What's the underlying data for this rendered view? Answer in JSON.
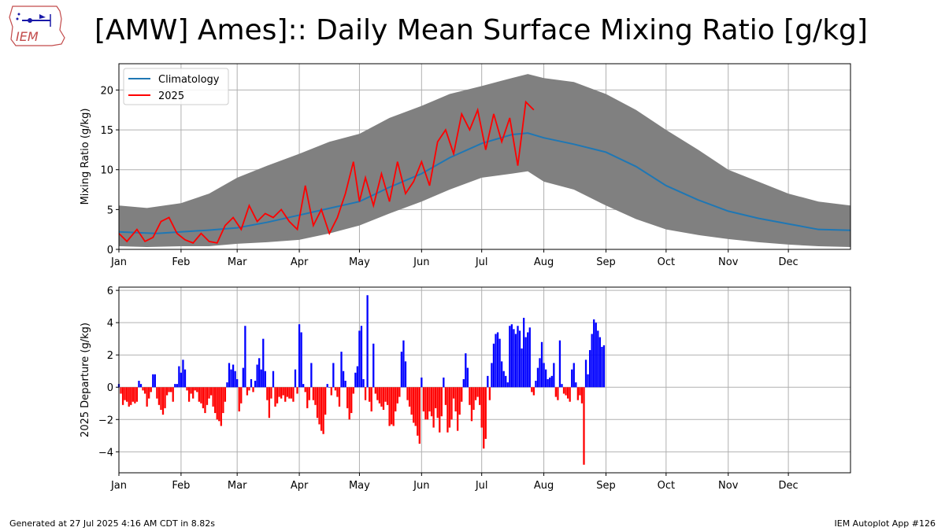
{
  "title": "[AMW] Ames]:: Daily Mean Surface Mixing Ratio [g/kg]",
  "logo_text": "IEM",
  "footer": {
    "generated": "Generated at 27 Jul 2025 4:16 AM CDT in 8.82s",
    "app": "IEM Autoplot App #126"
  },
  "colors": {
    "climatology": "#1f77b4",
    "current": "#ff0000",
    "range": "#808080",
    "positive": "#0000ff",
    "negative": "#ff0000",
    "grid": "#b0b0b0"
  },
  "chart_data": [
    {
      "type": "line",
      "title": "",
      "xlabel": "",
      "ylabel": "Mixing Ratio (g/kg)",
      "ylim": [
        0,
        23.3
      ],
      "yticks": [
        "0",
        "5",
        "10",
        "15",
        "20"
      ],
      "ytick_values": [
        0,
        5,
        10,
        15,
        20
      ],
      "month_labels": [
        "Jan",
        "Feb",
        "Mar",
        "Apr",
        "May",
        "Jun",
        "Jul",
        "Aug",
        "Sep",
        "Oct",
        "Nov",
        "Dec"
      ],
      "month_start_days": [
        1,
        32,
        60,
        91,
        121,
        152,
        182,
        213,
        244,
        274,
        305,
        335
      ],
      "xlim": [
        1,
        366
      ],
      "grid": true,
      "legend": {
        "position": "top-left",
        "entries": [
          "Climatology",
          "2025"
        ]
      },
      "climatology": {
        "name": "Climatology",
        "x": [
          1,
          10,
          20,
          32,
          45,
          60,
          75,
          91,
          105,
          121,
          136,
          152,
          166,
          182,
          197,
          205,
          213,
          228,
          244,
          259,
          274,
          290,
          305,
          320,
          335,
          350,
          366
        ],
        "y": [
          2.2,
          2.1,
          2.0,
          2.2,
          2.4,
          2.7,
          3.4,
          4.3,
          5.1,
          6.0,
          7.8,
          9.5,
          11.5,
          13.3,
          14.4,
          14.6,
          14.0,
          13.2,
          12.2,
          10.4,
          8.0,
          6.2,
          4.8,
          3.9,
          3.2,
          2.5,
          2.4
        ]
      },
      "range_upper": {
        "x": [
          1,
          15,
          32,
          46,
          60,
          75,
          91,
          106,
          121,
          136,
          152,
          166,
          182,
          197,
          205,
          213,
          228,
          244,
          259,
          274,
          290,
          305,
          320,
          335,
          350,
          366
        ],
        "y": [
          5.5,
          5.2,
          5.8,
          7.0,
          9.0,
          10.5,
          12.0,
          13.5,
          14.5,
          16.5,
          18.0,
          19.5,
          20.5,
          21.5,
          22.0,
          21.5,
          21.0,
          19.5,
          17.5,
          15.0,
          12.5,
          10.0,
          8.5,
          7.0,
          6.0,
          5.5
        ]
      },
      "range_lower": {
        "x": [
          1,
          15,
          32,
          46,
          60,
          75,
          91,
          106,
          121,
          136,
          152,
          166,
          182,
          197,
          205,
          213,
          228,
          244,
          259,
          274,
          290,
          305,
          320,
          335,
          350,
          366
        ],
        "y": [
          0.4,
          0.3,
          0.4,
          0.4,
          0.7,
          0.9,
          1.2,
          2.0,
          3.0,
          4.5,
          6.0,
          7.5,
          9.0,
          9.5,
          9.8,
          8.5,
          7.5,
          5.5,
          3.8,
          2.5,
          1.8,
          1.3,
          0.9,
          0.6,
          0.4,
          0.3
        ]
      },
      "current_year": {
        "name": "2025",
        "x": [
          1,
          5,
          10,
          14,
          18,
          22,
          26,
          30,
          34,
          38,
          42,
          46,
          50,
          54,
          58,
          62,
          66,
          70,
          74,
          78,
          82,
          86,
          90,
          94,
          98,
          102,
          106,
          110,
          114,
          118,
          121,
          124,
          128,
          132,
          136,
          140,
          144,
          148,
          152,
          156,
          160,
          164,
          168,
          172,
          176,
          180,
          184,
          188,
          192,
          196,
          200,
          204,
          208
        ],
        "y": [
          2.0,
          1.0,
          2.5,
          1.0,
          1.5,
          3.5,
          4.0,
          2.0,
          1.2,
          0.8,
          2.0,
          1.0,
          0.8,
          3.0,
          4.0,
          2.5,
          5.5,
          3.5,
          4.5,
          4.0,
          5.0,
          3.5,
          2.5,
          8.0,
          3.0,
          5.0,
          2.0,
          4.0,
          7.0,
          11.0,
          6.0,
          9.0,
          5.5,
          9.5,
          6.0,
          11.0,
          7.0,
          8.5,
          11.0,
          8.0,
          13.5,
          15.0,
          12.0,
          17.0,
          15.0,
          17.5,
          12.5,
          17.0,
          13.5,
          16.5,
          10.5,
          18.5,
          17.5
        ]
      }
    },
    {
      "type": "bar",
      "title": "",
      "xlabel": "",
      "ylabel": "2025 Departure (g/kg)",
      "ylim": [
        -5.3,
        6.2
      ],
      "yticks": [
        "−4",
        "−2",
        "0",
        "2",
        "4",
        "6"
      ],
      "ytick_values": [
        -4,
        -2,
        0,
        2,
        4,
        6
      ],
      "month_labels": [
        "Jan",
        "Feb",
        "Mar",
        "Apr",
        "May",
        "Jun",
        "Jul",
        "Aug",
        "Sep",
        "Oct",
        "Nov",
        "Dec"
      ],
      "month_start_days": [
        1,
        32,
        60,
        91,
        121,
        152,
        182,
        213,
        244,
        274,
        305,
        335
      ],
      "xlim": [
        1,
        366
      ],
      "grid": true,
      "start_day": 1,
      "values": [
        0.2,
        -0.4,
        -1.1,
        -0.8,
        -0.9,
        -1.2,
        -1.1,
        -0.9,
        -1.0,
        -0.9,
        0.4,
        0.2,
        -0.2,
        -0.4,
        -1.2,
        -0.7,
        -0.3,
        0.8,
        0.8,
        -0.7,
        -1.1,
        -1.4,
        -1.7,
        -1.3,
        -0.5,
        -0.3,
        -0.3,
        -0.9,
        0.2,
        0.2,
        1.3,
        0.9,
        1.7,
        1.1,
        -0.2,
        -0.9,
        -0.4,
        -0.7,
        -0.2,
        -0.3,
        -0.9,
        -1.0,
        -1.3,
        -1.6,
        -1.1,
        -0.7,
        -0.5,
        -1.2,
        -1.6,
        -2.0,
        -2.1,
        -2.4,
        -1.6,
        -0.9,
        0.3,
        1.5,
        1.1,
        1.4,
        1.0,
        0.5,
        -1.5,
        -1.0,
        1.2,
        3.8,
        -0.5,
        -0.2,
        0.5,
        -0.3,
        0.4,
        1.4,
        1.8,
        1.1,
        3.0,
        1.0,
        -0.8,
        -1.9,
        -0.7,
        1.0,
        -1.2,
        -1.0,
        -0.6,
        -0.7,
        -0.5,
        -0.9,
        -0.6,
        -0.7,
        -0.7,
        -0.9,
        1.1,
        -0.4,
        3.9,
        3.4,
        0.2,
        -0.3,
        -1.3,
        -0.8,
        1.5,
        -0.8,
        -1.1,
        -1.9,
        -2.3,
        -2.7,
        -2.9,
        -1.7,
        0.2,
        0.0,
        -0.5,
        1.5,
        -0.2,
        -0.6,
        -1.2,
        2.2,
        1.0,
        0.4,
        -1.3,
        -2.0,
        -1.6,
        -0.4,
        0.9,
        1.3,
        3.5,
        3.8,
        0.5,
        -0.8,
        5.7,
        -0.9,
        -1.5,
        2.7,
        -0.4,
        -0.8,
        -1.0,
        -1.2,
        -1.4,
        -0.9,
        -1.1,
        -2.4,
        -2.3,
        -2.4,
        -1.5,
        -1.0,
        -0.6,
        2.2,
        2.9,
        1.6,
        -0.8,
        -1.2,
        -1.7,
        -2.2,
        -2.4,
        -3.0,
        -3.5,
        0.6,
        -1.5,
        -2.0,
        -2.0,
        -1.5,
        -1.8,
        -2.5,
        -1.3,
        -1.9,
        -2.8,
        -1.8,
        0.6,
        -1.1,
        -2.8,
        -2.5,
        -2.0,
        -0.7,
        -1.5,
        -2.7,
        -1.7,
        -0.9,
        0.5,
        2.1,
        1.2,
        -1.1,
        -2.1,
        -1.4,
        -0.8,
        -0.6,
        -1.1,
        -2.5,
        -3.8,
        -3.2,
        0.7,
        -0.8,
        1.5,
        2.7,
        3.3,
        3.4,
        3.0,
        1.6,
        1.0,
        0.7,
        0.3,
        3.8,
        3.9,
        3.6,
        3.3,
        3.8,
        3.5,
        2.4,
        4.3,
        3.1,
        3.4,
        3.7,
        -0.3,
        -0.5,
        0.4,
        1.2,
        1.8,
        2.8,
        1.5,
        1.1,
        0.5,
        0.6,
        0.7,
        1.5,
        -0.6,
        -0.8,
        2.9,
        0.2,
        -0.4,
        -0.5,
        -0.7,
        -0.9,
        1.1,
        1.5,
        0.3,
        -0.8,
        -0.5,
        -1.0,
        -4.8,
        1.7,
        0.8,
        2.3,
        3.3,
        4.2,
        4.0,
        3.5,
        3.1,
        2.5,
        2.6
      ]
    }
  ]
}
